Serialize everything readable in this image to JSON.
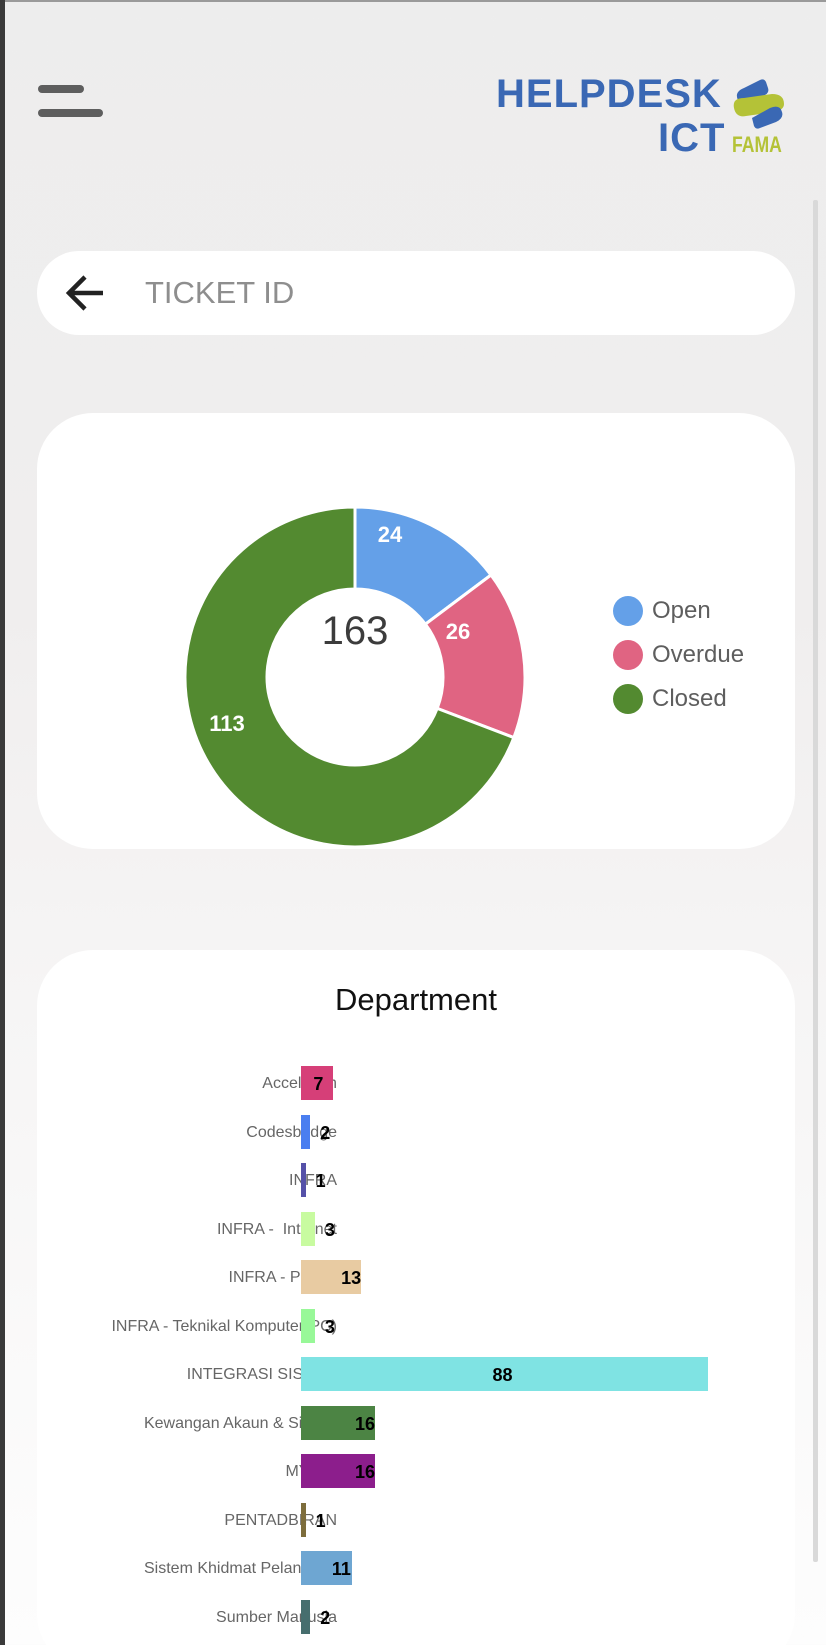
{
  "header": {
    "menu_icon": "hamburger-icon",
    "logo": {
      "line1": "HELPDESK",
      "line2": "ICT",
      "brand": "FAMA",
      "primary_color": "#3a68b4",
      "accent_color": "#b4c237"
    }
  },
  "search": {
    "back_icon": "arrow-left-icon",
    "placeholder": "TICKET ID",
    "value": ""
  },
  "status_summary": {
    "total": "163",
    "legend": [
      {
        "label": "Open",
        "color": "#64a0e8"
      },
      {
        "label": "Overdue",
        "color": "#e06482"
      },
      {
        "label": "Closed",
        "color": "#538a30"
      }
    ],
    "slice_labels": [
      "24",
      "26",
      "113"
    ]
  },
  "department": {
    "title": "Department"
  },
  "chart_data": [
    {
      "type": "pie",
      "title": "",
      "subtype": "doughnut",
      "center_label": "163",
      "categories": [
        "Open",
        "Overdue",
        "Closed"
      ],
      "values": [
        24,
        26,
        113
      ],
      "colors": [
        "#64a0e8",
        "#e06482",
        "#538a30"
      ],
      "legend_position": "right"
    },
    {
      "type": "bar",
      "orientation": "horizontal",
      "title": "Department",
      "xlabel": "",
      "ylabel": "",
      "grid": false,
      "categories": [
        "Accelteam",
        "Codesbridge",
        "INFRA",
        "INFRA -  Internet",
        "INFRA - Printer",
        "INFRA - Teknikal Komputer(PC)",
        "INTEGRASI SISTEM",
        "Kewangan Akaun & Sistem",
        "MYMIT",
        "PENTADBIRAN",
        "Sistem Khidmat Pelanggan",
        "Sumber Manusia"
      ],
      "values": [
        7,
        2,
        1,
        3,
        13,
        3,
        88,
        16,
        16,
        1,
        11,
        2
      ],
      "colors": [
        "#d63f78",
        "#4a7ef0",
        "#5551a8",
        "#c8fba0",
        "#e8cba2",
        "#98f898",
        "#7fe3e3",
        "#4c8444",
        "#8c1e8c",
        "#7d6d3c",
        "#6ea6d2",
        "#466e6e"
      ],
      "xlim": [
        0,
        88
      ]
    }
  ]
}
